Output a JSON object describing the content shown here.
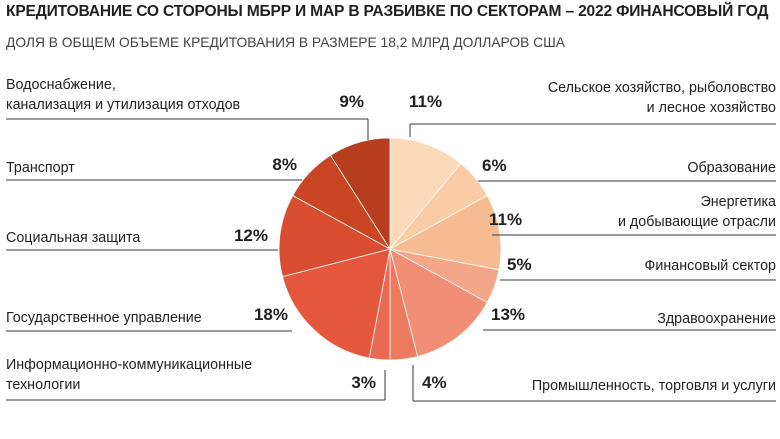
{
  "chart_data": {
    "type": "pie",
    "title": "КРЕДИТОВАНИЕ СО СТОРОНЫ МБРР И МАР В РАЗБИВКЕ ПО СЕКТОРАМ – 2022 ФИНАНСОВЫЙ ГОД",
    "subtitle": "ДОЛЯ В ОБЩЕМ ОБЪЕМЕ КРЕДИТОВАНИЯ В РАЗМЕРЕ 18,2 МЛРД ДОЛЛАРОВ США",
    "slices": [
      {
        "label_lines": [
          "Сельское хозяйство, рыболовство",
          "и лесное хозяйство"
        ],
        "value": 11,
        "value_label": "11%",
        "color": "#fbd9b9"
      },
      {
        "label_lines": [
          "Образование"
        ],
        "value": 6,
        "value_label": "6%",
        "color": "#f9cca5"
      },
      {
        "label_lines": [
          "Энергетика",
          "и добывающие отрасли"
        ],
        "value": 11,
        "value_label": "11%",
        "color": "#f7bb92"
      },
      {
        "label_lines": [
          "Финансовый сектор"
        ],
        "value": 5,
        "value_label": "5%",
        "color": "#f4a689"
      },
      {
        "label_lines": [
          "Здравоохранение"
        ],
        "value": 13,
        "value_label": "13%",
        "color": "#f08f73"
      },
      {
        "label_lines": [
          "Промышленность, торговля и услуги"
        ],
        "value": 4,
        "value_label": "4%",
        "color": "#ec7b60"
      },
      {
        "label_lines": [
          "Информационно-коммуникационные",
          "технологии"
        ],
        "value": 3,
        "value_label": "3%",
        "color": "#e96a52"
      },
      {
        "label_lines": [
          "Государственное управление"
        ],
        "value": 18,
        "value_label": "18%",
        "color": "#e4573c"
      },
      {
        "label_lines": [
          "Социальная защита"
        ],
        "value": 12,
        "value_label": "12%",
        "color": "#d94d30"
      },
      {
        "label_lines": [
          "Транспорт"
        ],
        "value": 8,
        "value_label": "8%",
        "color": "#c94523"
      },
      {
        "label_lines": [
          "Водоснабжение,",
          "канализация и утилизация отходов"
        ],
        "value": 9,
        "value_label": "9%",
        "color": "#b83d1f"
      }
    ]
  }
}
